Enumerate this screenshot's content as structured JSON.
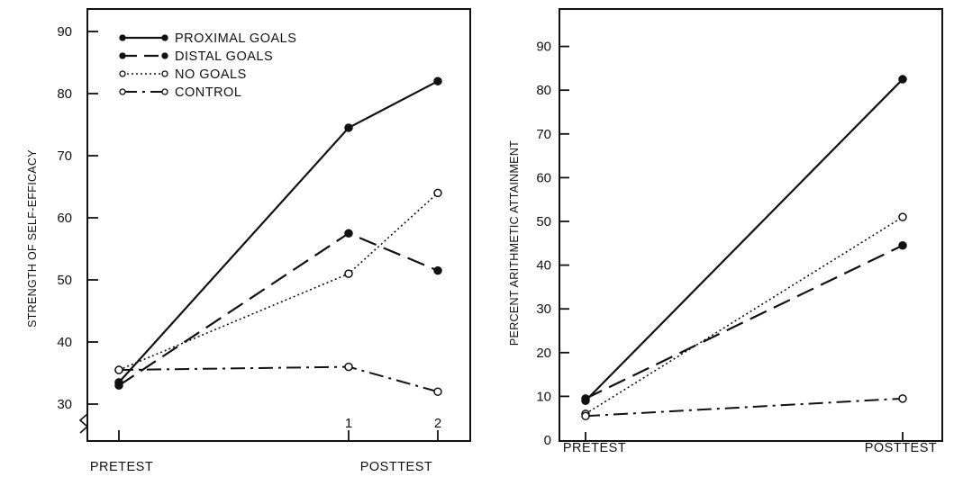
{
  "chart_data": [
    {
      "type": "line",
      "title": "",
      "ylabel": "STRENGTH OF SELF-EFFICACY",
      "xlabel": "",
      "ylim": [
        30,
        90
      ],
      "y_ticks": [
        "30",
        "40",
        "50",
        "60",
        "70",
        "80",
        "90"
      ],
      "y_axis_break": true,
      "x_tick_labels": [
        "1",
        "2"
      ],
      "x_category_labels": [
        "PRETEST",
        "POSTTEST"
      ],
      "grid": false,
      "legend_position": "top-left",
      "legend": [
        "PROXIMAL GOALS",
        "DISTAL GOALS",
        "NO GOALS",
        "CONTROL"
      ],
      "series": [
        {
          "name": "PROXIMAL GOALS",
          "style": "solid",
          "marker": "filled",
          "points": [
            [
              "PRETEST",
              33.5
            ],
            [
              "POSTTEST 1",
              74.5
            ],
            [
              "POSTTEST 2",
              82
            ]
          ]
        },
        {
          "name": "DISTAL GOALS",
          "style": "dashed",
          "marker": "filled",
          "points": [
            [
              "PRETEST",
              33
            ],
            [
              "POSTTEST 1",
              57.5
            ],
            [
              "POSTTEST 2",
              51.5
            ]
          ]
        },
        {
          "name": "NO GOALS",
          "style": "dotted",
          "marker": "open",
          "points": [
            [
              "PRETEST",
              35.5
            ],
            [
              "POSTTEST 1",
              51
            ],
            [
              "POSTTEST 2",
              64
            ]
          ]
        },
        {
          "name": "CONTROL",
          "style": "dash-dot",
          "marker": "open",
          "points": [
            [
              "PRETEST",
              35.5
            ],
            [
              "POSTTEST 1",
              36
            ],
            [
              "POSTTEST 2",
              32
            ]
          ]
        }
      ]
    },
    {
      "type": "line",
      "title": "",
      "ylabel": "PERCENT ARITHMETIC ATTAINMENT",
      "xlabel": "",
      "ylim": [
        0,
        90
      ],
      "y_ticks": [
        "0",
        "10",
        "20",
        "30",
        "40",
        "50",
        "60",
        "70",
        "80",
        "90"
      ],
      "x_category_labels": [
        "PRETEST",
        "POSTTEST"
      ],
      "grid": false,
      "series": [
        {
          "name": "PROXIMAL GOALS",
          "style": "solid",
          "marker": "filled",
          "points": [
            [
              "PRETEST",
              9
            ],
            [
              "POSTTEST",
              82.5
            ]
          ]
        },
        {
          "name": "DISTAL GOALS",
          "style": "dashed",
          "marker": "filled",
          "points": [
            [
              "PRETEST",
              9.5
            ],
            [
              "POSTTEST",
              44.5
            ]
          ]
        },
        {
          "name": "NO GOALS",
          "style": "dotted",
          "marker": "open",
          "points": [
            [
              "PRETEST",
              6
            ],
            [
              "POSTTEST",
              51
            ]
          ]
        },
        {
          "name": "CONTROL",
          "style": "dash-dot",
          "marker": "open",
          "points": [
            [
              "PRETEST",
              5.5
            ],
            [
              "POSTTEST",
              9.5
            ]
          ]
        }
      ]
    }
  ]
}
